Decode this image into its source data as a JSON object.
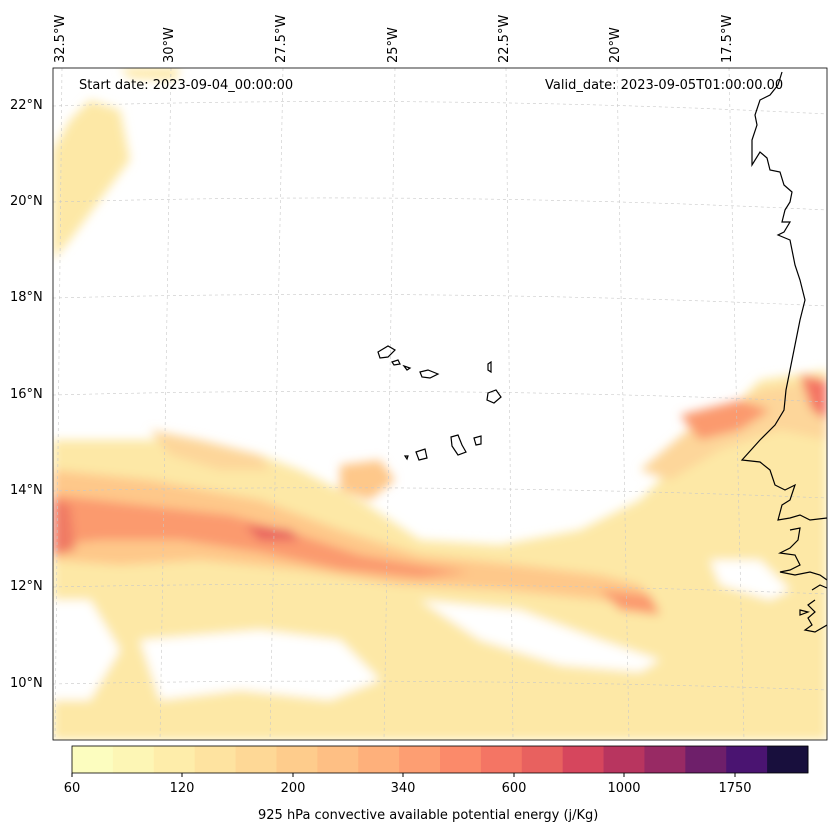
{
  "map": {
    "start_date": "Start date: 2023-09-04_00:00:00",
    "valid_date": "Valid_date: 2023-09-05T01:00:00.00",
    "lon_labels": [
      "32.5°W",
      "30°W",
      "27.5°W",
      "25°W",
      "22.5°W",
      "20°W",
      "17.5°W"
    ],
    "lat_labels": [
      "22°N",
      "20°N",
      "18°N",
      "16°N",
      "14°N",
      "12°N",
      "10°N"
    ]
  },
  "colorbar": {
    "label": "925 hPa convective available potential energy (j/Kg)",
    "ticks": [
      "60",
      "120",
      "200",
      "340",
      "600",
      "1000",
      "1750"
    ],
    "colors": [
      "#fcfdbf",
      "#fdf6b5",
      "#feedaa",
      "#fee3a0",
      "#fed896",
      "#fecc8c",
      "#febf84",
      "#feb07b",
      "#fd9e72",
      "#fb8a6a",
      "#f47564",
      "#e8615f",
      "#d6465d",
      "#b8355f",
      "#982a64",
      "#6e1f6a",
      "#4a1471",
      "#180f3d"
    ]
  }
}
